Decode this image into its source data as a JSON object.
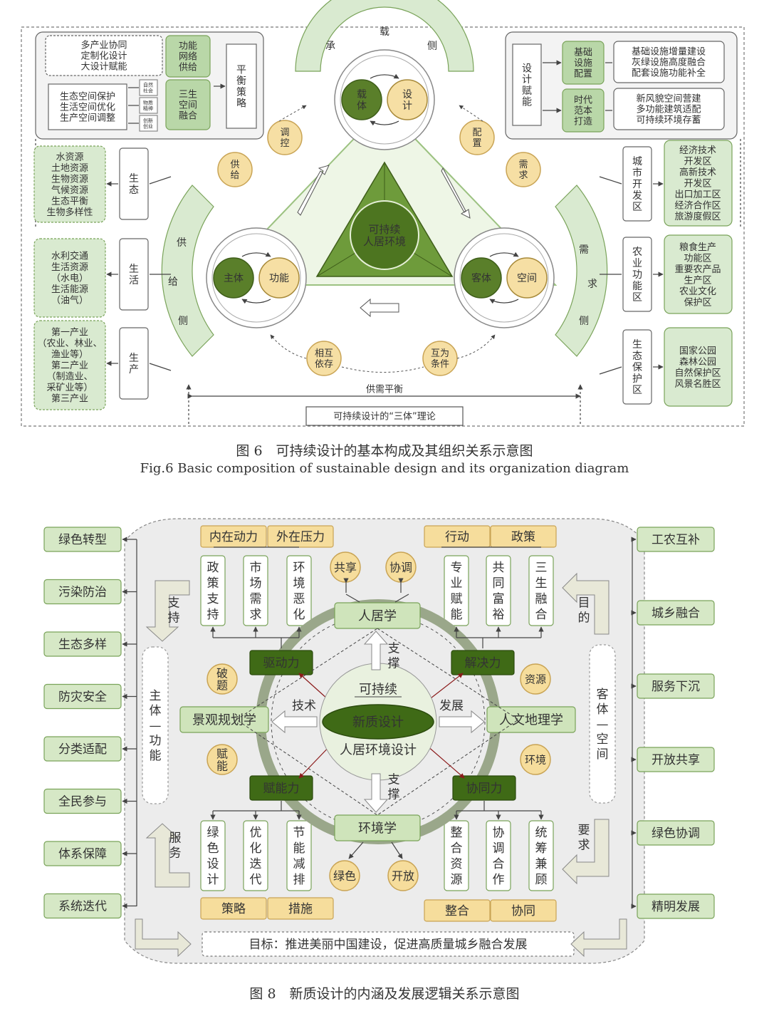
{
  "fig6": {
    "caption_cn": "图 6　可持续设计的基本构成及其组织关系示意图",
    "caption_en": "Fig.6 Basic composition of sustainable design and its organization diagram",
    "center": "可持续\n人居环境",
    "nodes": {
      "top": [
        "载体",
        "设计"
      ],
      "left": [
        "主体",
        "功能"
      ],
      "right": [
        "客体",
        "空间"
      ]
    },
    "arcs": {
      "top": [
        "承",
        "载",
        "侧"
      ],
      "left": [
        "供",
        "给",
        "侧"
      ],
      "right": [
        "需",
        "求",
        "侧"
      ]
    },
    "relations": [
      "调控",
      "配置",
      "供给",
      "需求",
      "相互依存",
      "互为条件"
    ],
    "balance": "供需平衡",
    "theory": "可持续设计的“三体”理论",
    "top_left": {
      "box1": [
        "多产业协同",
        "定制化设计",
        "大设计赋能"
      ],
      "mid1": "功能\n网络\n供给",
      "box2": [
        "生态空间保护",
        "生活空间优化",
        "生产空间调整"
      ],
      "tiny": [
        "自然\n社会",
        "物质\n精神",
        "创新\n创业"
      ],
      "mid2": "三生\n空间\n融合",
      "strategy": "平衡策略"
    },
    "top_right": {
      "label": "设计赋能",
      "g1": "基础\n设施\n配置",
      "g2": "时代\n范本\n打造",
      "b1": [
        "基础设施增量建设",
        "灰绿设施高度融合",
        "配套设施功能补全"
      ],
      "b2": [
        "新风貌空间营建",
        "多功能建筑适配",
        "可持续环境存蓄"
      ]
    },
    "left_side": {
      "cats": [
        "生态",
        "生活",
        "生产"
      ],
      "lists": [
        [
          "水资源",
          "土地资源",
          "生物资源",
          "气候资源",
          "生态平衡",
          "生物多样性"
        ],
        [
          "水利交通",
          "生活资源",
          "（水电）",
          "生活能源",
          "（油气）"
        ],
        [
          "第一产业",
          "（农业、林业、",
          "渔业等）",
          "第二产业",
          "（制造业、",
          "采矿业等）",
          "第三产业"
        ]
      ]
    },
    "right_side": {
      "cats": [
        "城市开发区",
        "农业功能区",
        "生态保护区"
      ],
      "lists": [
        [
          "经济技术",
          "开发区",
          "高新技术",
          "开发区",
          "出口加工区",
          "经济合作区",
          "旅游度假区"
        ],
        [
          "粮食生产",
          "功能区",
          "重要农产品",
          "生产区",
          "农业文化",
          "保护区"
        ],
        [
          "国家公园",
          "森林公园",
          "自然保护区",
          "风景名胜区"
        ]
      ]
    }
  },
  "fig8": {
    "caption_cn": "图 8　新质设计的内涵及发展逻辑关系示意图",
    "left_list": [
      "绿色转型",
      "污染防治",
      "生态多样",
      "防灾安全",
      "分类适配",
      "全民参与",
      "体系保障",
      "系统迭代"
    ],
    "right_list": [
      "工农互补",
      "城乡融合",
      "服务下沉",
      "开放共享",
      "绿色协调",
      "精明发展"
    ],
    "top_headers": [
      "内在动力",
      "外在压力",
      "行动",
      "政策"
    ],
    "top_left_cols": [
      "政策支持",
      "市场需求",
      "环境恶化"
    ],
    "top_right_cols": [
      "专业赋能",
      "共同富裕",
      "三生融合"
    ],
    "bottom_left_cols": [
      "绿色设计",
      "优化迭代",
      "节能减排"
    ],
    "bottom_right_cols": [
      "整合资源",
      "协调合作",
      "统筹兼顾"
    ],
    "bottom_headers": [
      "策略",
      "措施",
      "整合",
      "协同"
    ],
    "top_circles": [
      "共享",
      "协调"
    ],
    "bottom_circles": [
      "绿色",
      "开放"
    ],
    "left_circles": [
      "破题",
      "赋能"
    ],
    "right_circles": [
      "资源",
      "环境"
    ],
    "top_node": "人居学",
    "bottom_node": "环境学",
    "left_node": "景观规划学",
    "right_node": "人文地理学",
    "forces": [
      "驱动力",
      "解决力",
      "赋能力",
      "协同力"
    ],
    "center_top": "可持续",
    "center_mid": "新质设计",
    "center_bottom": "人居环境设计",
    "tech": "技术",
    "develop": "发展",
    "support_top": "支撑",
    "support_bottom": "支撑",
    "side_left": "主体—功能",
    "side_right": "客体—空间",
    "arrow_labels": [
      "支持",
      "目的",
      "服务",
      "要求"
    ],
    "goal": "目标：推进美丽中国建设，促进高质量城乡融合发展"
  }
}
